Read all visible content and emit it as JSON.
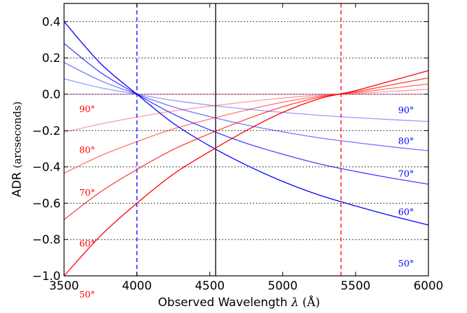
{
  "chart_data": {
    "type": "line",
    "xlabel": {
      "main": "Observed Wavelength ",
      "symbol": "λ",
      "unit": " (Å)"
    },
    "ylabel": {
      "main": "ADR ",
      "unit": "(arcseconds)"
    },
    "xlim": [
      3500,
      6000
    ],
    "ylim": [
      -1.0,
      0.5
    ],
    "x_ticks": [
      3500,
      4000,
      4500,
      5000,
      5500,
      6000
    ],
    "x_tick_labels": [
      "3500",
      "4000",
      "4500",
      "5000",
      "5500",
      "6000"
    ],
    "y_ticks": [
      0.4,
      0.2,
      0.0,
      -0.2,
      -0.4,
      -0.6,
      -0.8,
      -1.0
    ],
    "y_tick_labels": [
      "0.4",
      "0.2",
      "0.0",
      "−0.2",
      "−0.4",
      "−0.6",
      "−0.8",
      "−1.0"
    ],
    "grid": "horizontal dotted",
    "vertical_lines": [
      {
        "x": 4000,
        "color": "#0000ff",
        "style": "dashed"
      },
      {
        "x": 4540,
        "color": "#000000",
        "style": "solid"
      },
      {
        "x": 5400,
        "color": "#ff0000",
        "style": "dashed"
      }
    ],
    "x": [
      3500,
      3750,
      4000,
      4250,
      4500,
      4750,
      5000,
      5250,
      5500,
      5750,
      6000
    ],
    "series": [
      {
        "color": "#0000ff",
        "opacity": 1.0,
        "label": "50°",
        "values": [
          0.4,
          0.17,
          0.0,
          -0.16,
          -0.285,
          -0.39,
          -0.48,
          -0.555,
          -0.615,
          -0.67,
          -0.72
        ]
      },
      {
        "color": "#0000ff",
        "opacity": 0.75,
        "label": "60°",
        "values": [
          0.28,
          0.12,
          0.0,
          -0.11,
          -0.196,
          -0.27,
          -0.33,
          -0.383,
          -0.425,
          -0.462,
          -0.495
        ]
      },
      {
        "color": "#0000ff",
        "opacity": 0.55,
        "label": "70°",
        "values": [
          0.175,
          0.075,
          0.0,
          -0.07,
          -0.123,
          -0.169,
          -0.207,
          -0.24,
          -0.266,
          -0.29,
          -0.311
        ]
      },
      {
        "color": "#0000ff",
        "opacity": 0.4,
        "label": "80°",
        "values": [
          0.085,
          0.036,
          0.0,
          -0.034,
          -0.06,
          -0.082,
          -0.1,
          -0.116,
          -0.129,
          -0.14,
          -0.15
        ]
      },
      {
        "color": "#0000ff",
        "opacity": 0.25,
        "label": "90°",
        "values": [
          0.0,
          0.0,
          0.0,
          0.0,
          0.0,
          0.0,
          0.0,
          0.0,
          0.0,
          0.0,
          0.0
        ]
      },
      {
        "color": "#ff0000",
        "opacity": 1.0,
        "label": "50°",
        "values": [
          -1.0,
          -0.78,
          -0.6,
          -0.44,
          -0.315,
          -0.2,
          -0.1,
          -0.025,
          0.02,
          0.075,
          0.13
        ]
      },
      {
        "color": "#ff0000",
        "opacity": 0.75,
        "label": "60°",
        "values": [
          -0.69,
          -0.538,
          -0.414,
          -0.304,
          -0.217,
          -0.138,
          -0.069,
          -0.017,
          0.014,
          0.052,
          0.09
        ]
      },
      {
        "color": "#ff0000",
        "opacity": 0.55,
        "label": "70°",
        "values": [
          -0.435,
          -0.339,
          -0.261,
          -0.191,
          -0.137,
          -0.087,
          -0.044,
          -0.011,
          0.009,
          0.033,
          0.057
        ]
      },
      {
        "color": "#ff0000",
        "opacity": 0.4,
        "label": "80°",
        "values": [
          -0.21,
          -0.164,
          -0.126,
          -0.092,
          -0.066,
          -0.042,
          -0.021,
          -0.005,
          0.004,
          0.016,
          0.027
        ]
      },
      {
        "color": "#ff0000",
        "opacity": 0.25,
        "label": "90°",
        "values": [
          0.0,
          0.0,
          0.0,
          0.0,
          0.0,
          0.0,
          0.0,
          0.0,
          0.0,
          0.0,
          0.0
        ]
      }
    ],
    "annotations": {
      "red": [
        {
          "text": "90°",
          "y": -0.08
        },
        {
          "text": "80°",
          "y": -0.305
        },
        {
          "text": "70°",
          "y": -0.54
        },
        {
          "text": "60°",
          "y": -0.82
        },
        {
          "text": "50°",
          "y": -1.1
        }
      ],
      "blue": [
        {
          "text": "90°",
          "y": -0.085
        },
        {
          "text": "80°",
          "y": -0.255
        },
        {
          "text": "70°",
          "y": -0.435
        },
        {
          "text": "60°",
          "y": -0.645
        },
        {
          "text": "50°",
          "y": -0.93
        }
      ]
    }
  }
}
